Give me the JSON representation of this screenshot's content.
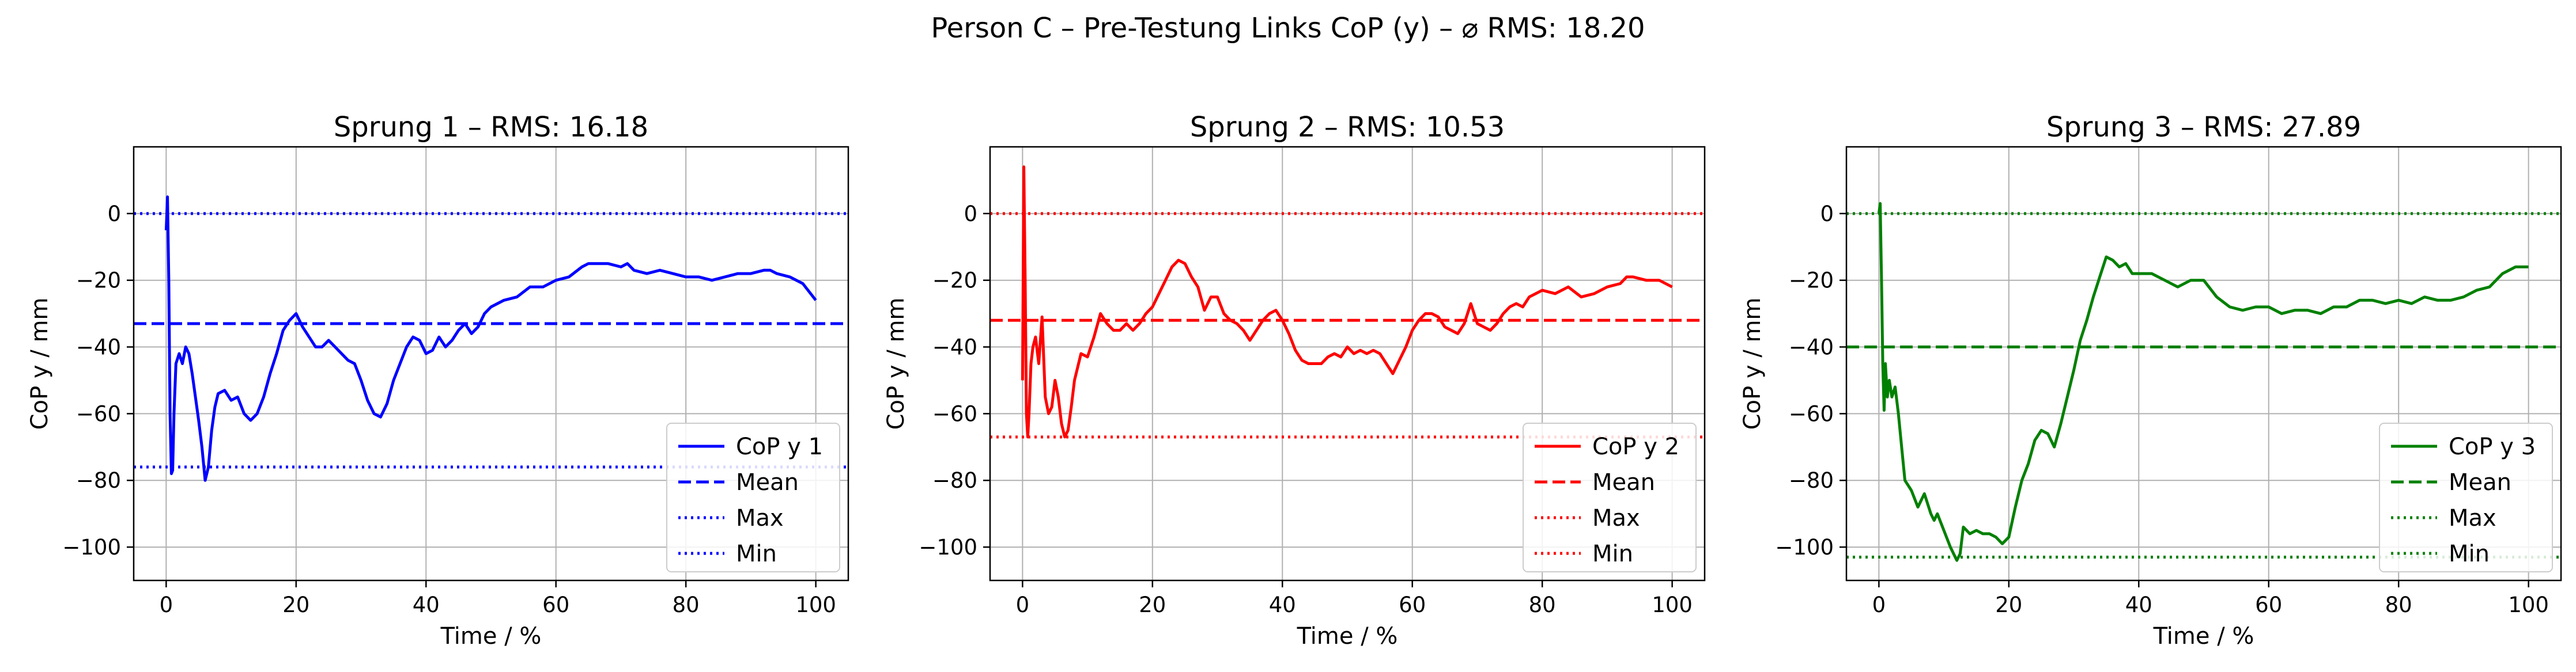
{
  "figure": {
    "suptitle": "Person C – Pre-Testung Links CoP (y) – ⌀ RMS: 18.20"
  },
  "chart_data": [
    {
      "type": "line",
      "title": "Sprung 1 – RMS: 16.18",
      "xlabel": "Time / %",
      "ylabel": "CoP y / mm",
      "xlim": [
        -5,
        105
      ],
      "ylim": [
        -110,
        20
      ],
      "xticks": [
        0,
        20,
        40,
        60,
        80,
        100
      ],
      "yticks": [
        0,
        -20,
        -40,
        -60,
        -80,
        -100
      ],
      "grid": true,
      "legend_position": "lower right",
      "color": "#0000ff",
      "series": [
        {
          "name": "CoP y 1",
          "style": "solid",
          "x": [
            0,
            0.2,
            0.4,
            0.6,
            0.8,
            1.0,
            1.2,
            1.5,
            2.0,
            2.5,
            3.0,
            3.5,
            4.0,
            4.5,
            5.0,
            5.5,
            6.0,
            6.5,
            7.0,
            7.5,
            8.0,
            9.0,
            10.0,
            11.0,
            12.0,
            13.0,
            14.0,
            15.0,
            16.0,
            17.0,
            18.0,
            19.0,
            20.0,
            21.0,
            22.0,
            23.0,
            24.0,
            25.0,
            26.0,
            27.0,
            28.0,
            29.0,
            30.0,
            31.0,
            32.0,
            33.0,
            34.0,
            35.0,
            36.0,
            37.0,
            38.0,
            39.0,
            40.0,
            41.0,
            42.0,
            43.0,
            44.0,
            45.0,
            46.0,
            47.0,
            48.0,
            49.0,
            50.0,
            52.0,
            54.0,
            56.0,
            58.0,
            60.0,
            62.0,
            64.0,
            65.0,
            66.0,
            68.0,
            70.0,
            71.0,
            72.0,
            74.0,
            76.0,
            78.0,
            80.0,
            82.0,
            84.0,
            86.0,
            88.0,
            90.0,
            92.0,
            93.0,
            94.0,
            96.0,
            98.0,
            100.0
          ],
          "y": [
            -5,
            5,
            -20,
            -60,
            -78,
            -77,
            -60,
            -45,
            -42,
            -45,
            -40,
            -42,
            -48,
            -55,
            -62,
            -70,
            -80,
            -76,
            -65,
            -58,
            -54,
            -53,
            -56,
            -55,
            -60,
            -62,
            -60,
            -55,
            -48,
            -42,
            -35,
            -32,
            -30,
            -34,
            -37,
            -40,
            -40,
            -38,
            -40,
            -42,
            -44,
            -45,
            -50,
            -56,
            -60,
            -61,
            -57,
            -50,
            -45,
            -40,
            -37,
            -38,
            -42,
            -41,
            -37,
            -40,
            -38,
            -35,
            -33,
            -36,
            -34,
            -30,
            -28,
            -26,
            -25,
            -22,
            -22,
            -20,
            -19,
            -16,
            -15,
            -15,
            -15,
            -16,
            -15,
            -17,
            -18,
            -17,
            -18,
            -19,
            -19,
            -20,
            -19,
            -18,
            -18,
            -17,
            -17,
            -18,
            -19,
            -21,
            -26
          ]
        },
        {
          "name": "Mean",
          "style": "dashed",
          "y_const": -33
        },
        {
          "name": "Max",
          "style": "dotted",
          "y_const": 0
        },
        {
          "name": "Min",
          "style": "dotted",
          "y_const": -76
        }
      ]
    },
    {
      "type": "line",
      "title": "Sprung 2 – RMS: 10.53",
      "xlabel": "Time / %",
      "ylabel": "CoP y / mm",
      "xlim": [
        -5,
        105
      ],
      "ylim": [
        -110,
        20
      ],
      "xticks": [
        0,
        20,
        40,
        60,
        80,
        100
      ],
      "yticks": [
        0,
        -20,
        -40,
        -60,
        -80,
        -100
      ],
      "grid": true,
      "legend_position": "lower right",
      "color": "#ff0000",
      "series": [
        {
          "name": "CoP y 2",
          "style": "solid",
          "x": [
            0,
            0.2,
            0.4,
            0.6,
            0.8,
            1.0,
            1.3,
            1.6,
            2.0,
            2.5,
            3.0,
            3.5,
            4.0,
            4.5,
            5.0,
            5.5,
            6.0,
            6.5,
            7.0,
            7.5,
            8.0,
            9.0,
            10.0,
            11.0,
            12.0,
            13.0,
            14.0,
            15.0,
            16.0,
            17.0,
            18.0,
            19.0,
            20.0,
            21.0,
            22.0,
            23.0,
            24.0,
            25.0,
            26.0,
            27.0,
            28.0,
            29.0,
            30.0,
            31.0,
            32.0,
            33.0,
            34.0,
            35.0,
            36.0,
            37.0,
            38.0,
            39.0,
            40.0,
            41.0,
            42.0,
            43.0,
            44.0,
            45.0,
            46.0,
            47.0,
            48.0,
            49.0,
            50.0,
            51.0,
            52.0,
            53.0,
            54.0,
            55.0,
            56.0,
            57.0,
            58.0,
            59.0,
            60.0,
            61.0,
            62.0,
            63.0,
            64.0,
            65.0,
            66.0,
            67.0,
            68.0,
            69.0,
            70.0,
            71.0,
            72.0,
            73.0,
            74.0,
            75.0,
            76.0,
            77.0,
            78.0,
            79.0,
            80.0,
            82.0,
            84.0,
            86.0,
            88.0,
            90.0,
            92.0,
            93.0,
            94.0,
            96.0,
            98.0,
            100.0
          ],
          "y": [
            -50,
            14,
            -20,
            -60,
            -67,
            -60,
            -45,
            -40,
            -37,
            -45,
            -31,
            -55,
            -60,
            -58,
            -50,
            -55,
            -63,
            -67,
            -65,
            -58,
            -50,
            -42,
            -43,
            -37,
            -30,
            -33,
            -35,
            -35,
            -33,
            -35,
            -33,
            -30,
            -28,
            -24,
            -20,
            -16,
            -14,
            -15,
            -19,
            -22,
            -29,
            -25,
            -25,
            -30,
            -32,
            -33,
            -35,
            -38,
            -35,
            -32,
            -30,
            -29,
            -32,
            -36,
            -41,
            -44,
            -45,
            -45,
            -45,
            -43,
            -42,
            -43,
            -40,
            -42,
            -41,
            -42,
            -41,
            -42,
            -45,
            -48,
            -44,
            -40,
            -35,
            -32,
            -30,
            -30,
            -31,
            -34,
            -35,
            -36,
            -33,
            -27,
            -33,
            -34,
            -35,
            -33,
            -30,
            -28,
            -27,
            -28,
            -25,
            -24,
            -23,
            -24,
            -22,
            -25,
            -24,
            -22,
            -21,
            -19,
            -19,
            -20,
            -20,
            -22
          ]
        },
        {
          "name": "Mean",
          "style": "dashed",
          "y_const": -32
        },
        {
          "name": "Max",
          "style": "dotted",
          "y_const": 0
        },
        {
          "name": "Min",
          "style": "dotted",
          "y_const": -67
        }
      ]
    },
    {
      "type": "line",
      "title": "Sprung 3 – RMS: 27.89",
      "xlabel": "Time / %",
      "ylabel": "CoP y / mm",
      "xlim": [
        -5,
        105
      ],
      "ylim": [
        -110,
        20
      ],
      "xticks": [
        0,
        20,
        40,
        60,
        80,
        100
      ],
      "yticks": [
        0,
        -20,
        -40,
        -60,
        -80,
        -100
      ],
      "grid": true,
      "legend_position": "lower right",
      "color": "#008000",
      "series": [
        {
          "name": "CoP y 3",
          "style": "solid",
          "x": [
            0,
            0.2,
            0.4,
            0.6,
            0.8,
            1.0,
            1.3,
            1.6,
            2.0,
            2.5,
            3.0,
            3.5,
            4.0,
            5.0,
            6.0,
            7.0,
            8.0,
            8.5,
            9.0,
            10.0,
            11.0,
            12.0,
            12.5,
            13.0,
            14.0,
            15.0,
            16.0,
            17.0,
            18.0,
            19.0,
            20.0,
            21.0,
            22.0,
            23.0,
            24.0,
            25.0,
            26.0,
            27.0,
            28.0,
            29.0,
            30.0,
            31.0,
            32.0,
            33.0,
            34.0,
            35.0,
            36.0,
            37.0,
            38.0,
            39.0,
            40.0,
            42.0,
            44.0,
            46.0,
            48.0,
            50.0,
            52.0,
            54.0,
            56.0,
            58.0,
            60.0,
            62.0,
            64.0,
            66.0,
            68.0,
            70.0,
            72.0,
            74.0,
            76.0,
            78.0,
            80.0,
            82.0,
            84.0,
            86.0,
            88.0,
            90.0,
            92.0,
            94.0,
            96.0,
            98.0,
            100.0
          ],
          "y": [
            0,
            3,
            -20,
            -45,
            -59,
            -45,
            -55,
            -50,
            -55,
            -52,
            -60,
            -70,
            -80,
            -83,
            -88,
            -84,
            -90,
            -92,
            -90,
            -95,
            -100,
            -104,
            -102,
            -94,
            -96,
            -95,
            -96,
            -96,
            -97,
            -99,
            -97,
            -88,
            -80,
            -75,
            -68,
            -65,
            -66,
            -70,
            -63,
            -55,
            -47,
            -38,
            -32,
            -25,
            -19,
            -13,
            -14,
            -16,
            -15,
            -18,
            -18,
            -18,
            -20,
            -22,
            -20,
            -20,
            -25,
            -28,
            -29,
            -28,
            -28,
            -30,
            -29,
            -29,
            -30,
            -28,
            -28,
            -26,
            -26,
            -27,
            -26,
            -27,
            -25,
            -26,
            -26,
            -25,
            -23,
            -22,
            -18,
            -16,
            -16
          ]
        },
        {
          "name": "Mean",
          "style": "dashed",
          "y_const": -40
        },
        {
          "name": "Max",
          "style": "dotted",
          "y_const": 0
        },
        {
          "name": "Min",
          "style": "dotted",
          "y_const": -103
        }
      ]
    }
  ]
}
